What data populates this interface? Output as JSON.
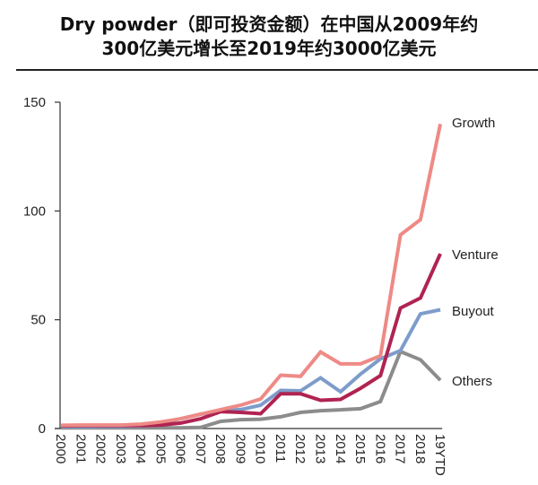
{
  "title": {
    "line1": "Dry powder（即可投资金额）在中国从2009年约",
    "line2": "300亿美元增长至2019年约3000亿美元"
  },
  "chart_data": {
    "type": "line",
    "title": "Dry powder（即可投资金额）在中国从2009年约300亿美元增长至2019年约3000亿美元",
    "xlabel": "",
    "ylabel": "",
    "ylim": [
      0,
      150
    ],
    "yticks": [
      0,
      50,
      100,
      150
    ],
    "grid": false,
    "legend_position": "inline-right",
    "categories": [
      "2000",
      "2001",
      "2002",
      "2003",
      "2004",
      "2005",
      "2006",
      "2007",
      "2008",
      "2009",
      "2010",
      "2011",
      "2012",
      "2013",
      "2014",
      "2015",
      "2016",
      "2017",
      "2018",
      "19YTD"
    ],
    "series": [
      {
        "name": "Growth",
        "color": "#ee8a86",
        "values": [
          1.5,
          1.6,
          1.6,
          1.6,
          2.0,
          3.0,
          4.5,
          6.6,
          8.7,
          10.7,
          13.6,
          24.5,
          24.0,
          35.2,
          29.7,
          29.7,
          33.4,
          89.0,
          96.0,
          140.0
        ]
      },
      {
        "name": "Venture",
        "color": "#b02350",
        "values": [
          1.2,
          1.3,
          1.3,
          1.3,
          1.4,
          1.6,
          2.5,
          4.5,
          7.8,
          7.4,
          6.8,
          16.0,
          16.0,
          13.0,
          13.4,
          18.5,
          24.3,
          55.4,
          60.0,
          80.3
        ]
      },
      {
        "name": "Buyout",
        "color": "#7d9ccb",
        "values": [
          0.8,
          0.8,
          0.9,
          0.9,
          1.2,
          2.5,
          4.5,
          6.6,
          8.2,
          8.7,
          10.7,
          17.5,
          17.3,
          23.3,
          16.9,
          25.0,
          32.0,
          35.8,
          52.7,
          54.6
        ]
      },
      {
        "name": "Others",
        "color": "#8c8c8c",
        "values": [
          0.3,
          0.3,
          0.3,
          0.3,
          0.3,
          0.3,
          0.3,
          0.5,
          3.3,
          4.1,
          4.3,
          5.4,
          7.4,
          8.2,
          8.6,
          9.1,
          12.4,
          35.4,
          31.6,
          22.2
        ]
      }
    ]
  }
}
